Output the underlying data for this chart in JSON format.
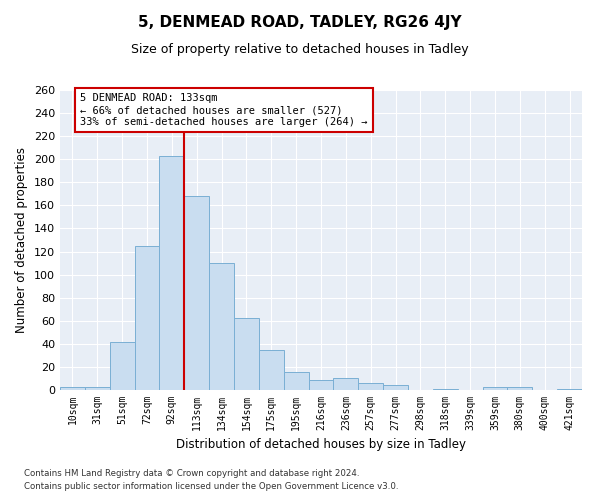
{
  "title": "5, DENMEAD ROAD, TADLEY, RG26 4JY",
  "subtitle": "Size of property relative to detached houses in Tadley",
  "xlabel": "Distribution of detached houses by size in Tadley",
  "ylabel": "Number of detached properties",
  "bar_color": "#c9ddf0",
  "bar_edge_color": "#7aafd4",
  "background_color": "#e8eef6",
  "grid_color": "#ffffff",
  "categories": [
    "10sqm",
    "31sqm",
    "51sqm",
    "72sqm",
    "92sqm",
    "113sqm",
    "134sqm",
    "154sqm",
    "175sqm",
    "195sqm",
    "216sqm",
    "236sqm",
    "257sqm",
    "277sqm",
    "298sqm",
    "318sqm",
    "339sqm",
    "359sqm",
    "380sqm",
    "400sqm",
    "421sqm"
  ],
  "values": [
    3,
    3,
    42,
    125,
    203,
    168,
    110,
    62,
    35,
    16,
    9,
    10,
    6,
    4,
    0,
    1,
    0,
    3,
    3,
    0,
    1
  ],
  "ylim": [
    0,
    260
  ],
  "yticks": [
    0,
    20,
    40,
    60,
    80,
    100,
    120,
    140,
    160,
    180,
    200,
    220,
    240,
    260
  ],
  "vline_x": 4.5,
  "annotation_text": "5 DENMEAD ROAD: 133sqm\n← 66% of detached houses are smaller (527)\n33% of semi-detached houses are larger (264) →",
  "annotation_box_color": "#ffffff",
  "annotation_box_edge_color": "#cc0000",
  "vline_color": "#cc0000",
  "footnote1": "Contains HM Land Registry data © Crown copyright and database right 2024.",
  "footnote2": "Contains public sector information licensed under the Open Government Licence v3.0."
}
